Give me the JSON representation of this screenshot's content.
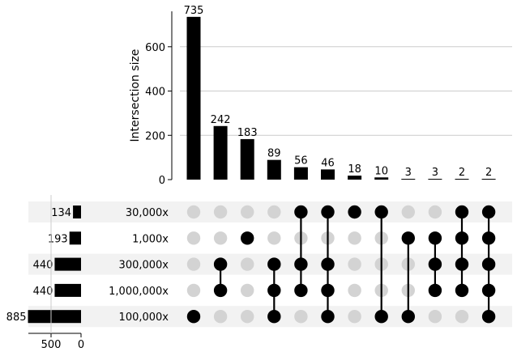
{
  "chart_data": {
    "type": "upset",
    "ylabel": "Intersection size",
    "ylim": [
      0,
      760
    ],
    "y_ticks": [
      0,
      200,
      400,
      600
    ],
    "y_tick_labels": [
      "0",
      "200",
      "400",
      "600"
    ],
    "grid": true,
    "sets": [
      {
        "name": "30,000x",
        "size": 134
      },
      {
        "name": "1,000x",
        "size": 193
      },
      {
        "name": "300,000x",
        "size": 440
      },
      {
        "name": "1,000,000x",
        "size": 440
      },
      {
        "name": "100,000x",
        "size": 885
      }
    ],
    "set_size_ticks": [
      500,
      0
    ],
    "set_size_tick_labels": [
      "500",
      "0"
    ],
    "intersections": [
      {
        "size": 735,
        "label": "735",
        "members": [
          "100,000x"
        ]
      },
      {
        "size": 242,
        "label": "242",
        "members": [
          "300,000x",
          "1,000,000x"
        ]
      },
      {
        "size": 183,
        "label": "183",
        "members": [
          "1,000x"
        ]
      },
      {
        "size": 89,
        "label": "89",
        "members": [
          "300,000x",
          "1,000,000x",
          "100,000x"
        ]
      },
      {
        "size": 56,
        "label": "56",
        "members": [
          "30,000x",
          "300,000x",
          "1,000,000x"
        ]
      },
      {
        "size": 46,
        "label": "46",
        "members": [
          "30,000x",
          "300,000x",
          "1,000,000x",
          "100,000x"
        ]
      },
      {
        "size": 18,
        "label": "18",
        "members": [
          "30,000x"
        ]
      },
      {
        "size": 10,
        "label": "10",
        "members": [
          "30,000x",
          "100,000x"
        ]
      },
      {
        "size": 3,
        "label": "3",
        "members": [
          "1,000x",
          "100,000x"
        ]
      },
      {
        "size": 3,
        "label": "3",
        "members": [
          "1,000x",
          "300,000x",
          "1,000,000x"
        ]
      },
      {
        "size": 2,
        "label": "2",
        "members": [
          "30,000x",
          "1,000x",
          "300,000x",
          "1,000,000x"
        ]
      },
      {
        "size": 2,
        "label": "2",
        "members": [
          "30,000x",
          "1,000x",
          "300,000x",
          "1,000,000x",
          "100,000x"
        ]
      }
    ],
    "colors": {
      "bar": "#000000",
      "dot_active": "#000000",
      "dot_inactive": "#d3d3d3",
      "shade": "#f2f2f2",
      "grid": "#cccccc"
    }
  }
}
